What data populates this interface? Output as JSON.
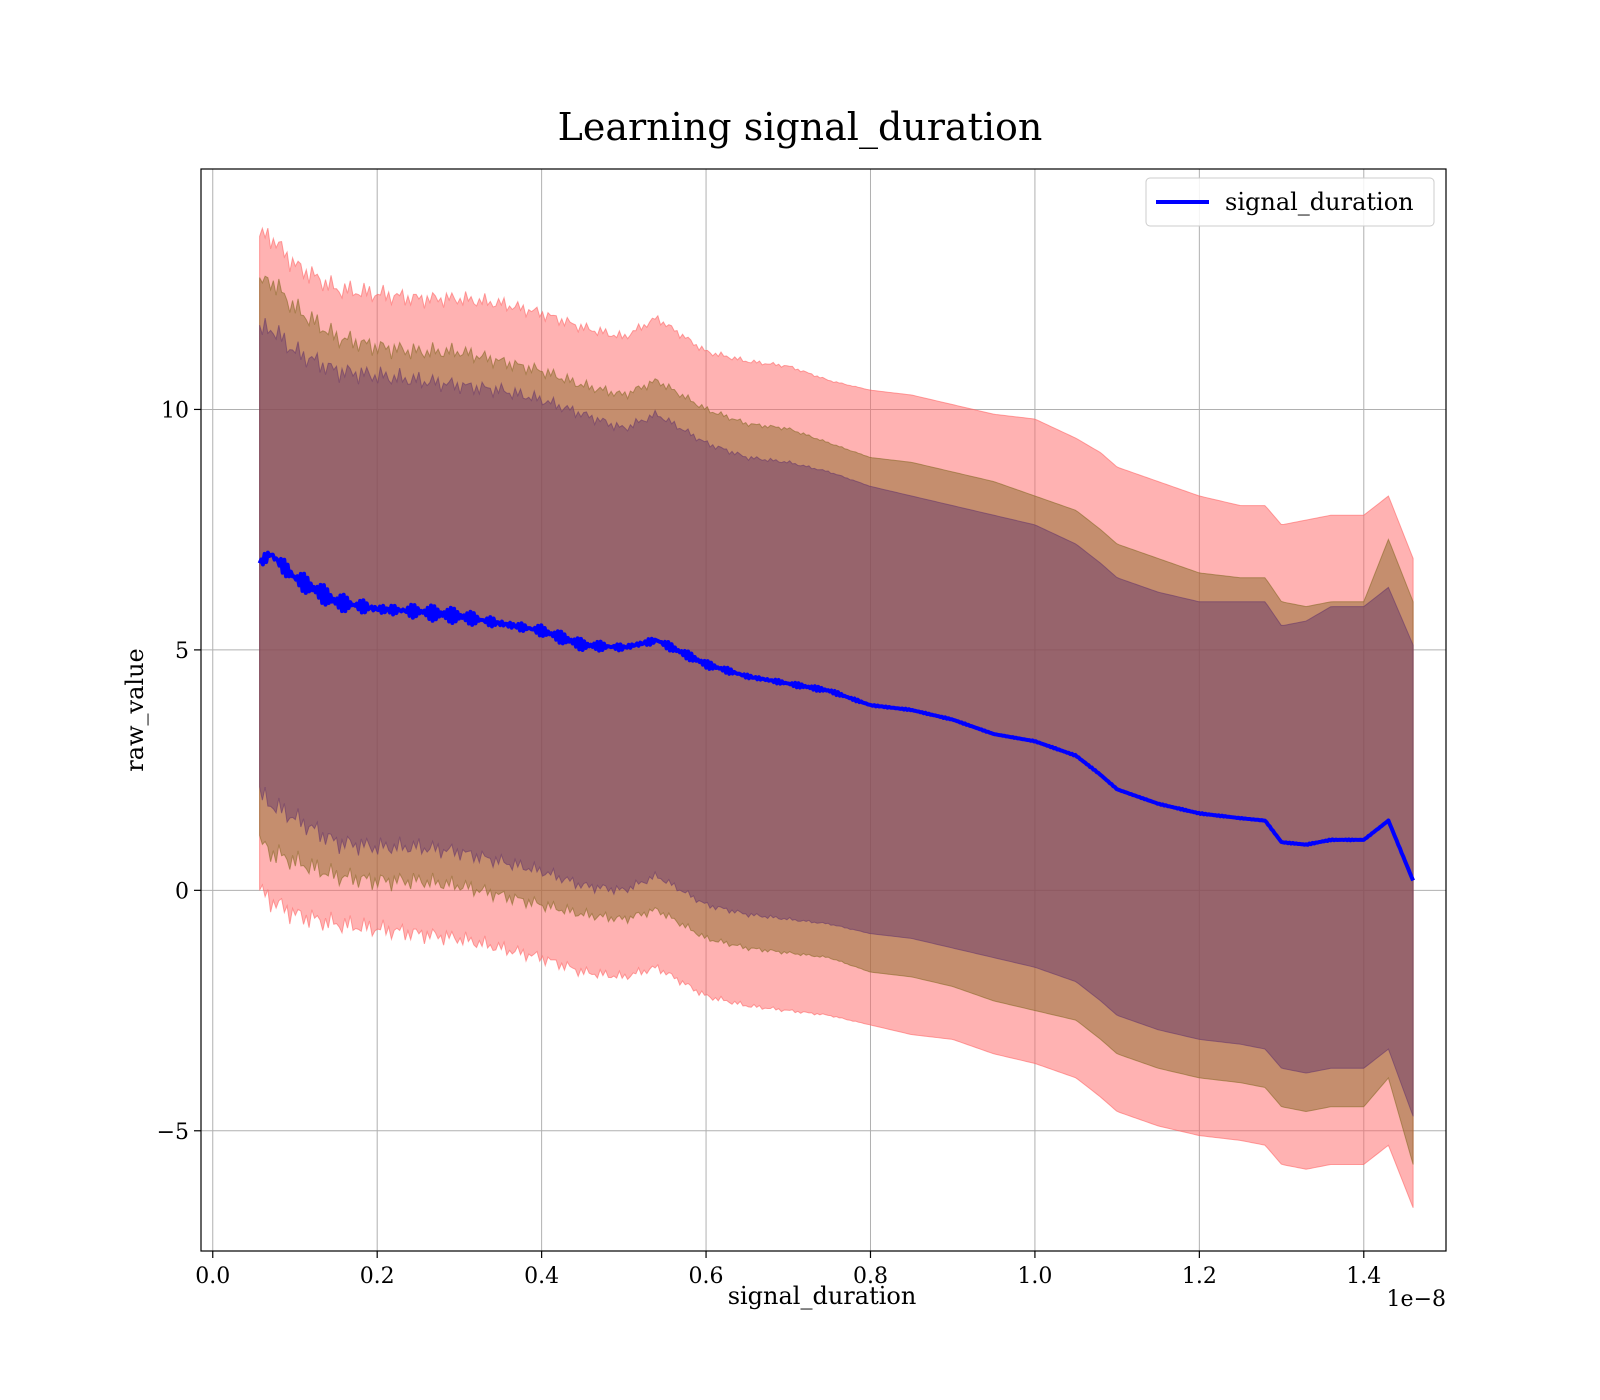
{
  "chart_data": {
    "type": "line",
    "title": "Learning signal_duration",
    "xlabel": "signal_duration",
    "ylabel": "raw_value",
    "x_offset_label": "1e−8",
    "x_scale_exponent": -8,
    "xlim": [
      -0.0143,
      1.5
    ],
    "ylim": [
      -7.5,
      15.0
    ],
    "x_ticks": [
      0.0,
      0.2,
      0.4,
      0.6,
      0.8,
      1.0,
      1.2,
      1.4
    ],
    "x_tick_labels": [
      "0.0",
      "0.2",
      "0.4",
      "0.6",
      "0.8",
      "1.0",
      "1.2",
      "1.4"
    ],
    "y_ticks": [
      -5,
      0,
      5,
      10
    ],
    "y_tick_labels": [
      "−5",
      "0",
      "5",
      "10"
    ],
    "grid": true,
    "legend_placement": "top-right",
    "series": [
      {
        "name": "signal_duration",
        "color": "#0000ff",
        "x": [
          0.057,
          0.07,
          0.1,
          0.15,
          0.2,
          0.25,
          0.3,
          0.35,
          0.4,
          0.45,
          0.5,
          0.54,
          0.6,
          0.65,
          0.7,
          0.75,
          0.8,
          0.85,
          0.9,
          0.95,
          1.0,
          1.05,
          1.08,
          1.1,
          1.15,
          1.2,
          1.25,
          1.28,
          1.3,
          1.33,
          1.36,
          1.4,
          1.43,
          1.46
        ],
        "values": [
          6.8,
          7.0,
          6.5,
          6.0,
          5.85,
          5.8,
          5.7,
          5.55,
          5.4,
          5.1,
          5.05,
          5.2,
          4.7,
          4.45,
          4.3,
          4.15,
          3.85,
          3.75,
          3.55,
          3.25,
          3.1,
          2.8,
          2.4,
          2.1,
          1.8,
          1.6,
          1.5,
          1.45,
          1.0,
          0.95,
          1.05,
          1.05,
          1.45,
          0.2
        ]
      }
    ],
    "bands": [
      {
        "color": "#ff6666",
        "x": [
          0.057,
          0.07,
          0.1,
          0.15,
          0.2,
          0.25,
          0.3,
          0.35,
          0.4,
          0.45,
          0.5,
          0.54,
          0.6,
          0.65,
          0.7,
          0.75,
          0.8,
          0.85,
          0.9,
          0.95,
          1.0,
          1.05,
          1.08,
          1.1,
          1.15,
          1.2,
          1.25,
          1.28,
          1.3,
          1.33,
          1.36,
          1.4,
          1.43,
          1.46
        ],
        "upper": [
          13.6,
          13.6,
          13.0,
          12.5,
          12.4,
          12.3,
          12.3,
          12.2,
          12.0,
          11.7,
          11.5,
          11.9,
          11.2,
          11.0,
          10.9,
          10.6,
          10.4,
          10.3,
          10.1,
          9.9,
          9.8,
          9.4,
          9.1,
          8.8,
          8.5,
          8.2,
          8.0,
          8.0,
          7.6,
          7.7,
          7.8,
          7.8,
          8.2,
          6.9
        ],
        "lower": [
          0.0,
          -0.2,
          -0.5,
          -0.7,
          -0.8,
          -0.9,
          -1.0,
          -1.2,
          -1.4,
          -1.7,
          -1.8,
          -1.6,
          -2.2,
          -2.4,
          -2.5,
          -2.6,
          -2.8,
          -3.0,
          -3.1,
          -3.4,
          -3.6,
          -3.9,
          -4.3,
          -4.6,
          -4.9,
          -5.1,
          -5.2,
          -5.3,
          -5.7,
          -5.8,
          -5.7,
          -5.7,
          -5.3,
          -6.6
        ]
      },
      {
        "color": "#8b6a2a",
        "x": [
          0.057,
          0.07,
          0.1,
          0.15,
          0.2,
          0.25,
          0.3,
          0.35,
          0.4,
          0.45,
          0.5,
          0.54,
          0.6,
          0.65,
          0.7,
          0.75,
          0.8,
          0.85,
          0.9,
          0.95,
          1.0,
          1.05,
          1.08,
          1.1,
          1.15,
          1.2,
          1.25,
          1.28,
          1.3,
          1.33,
          1.36,
          1.4,
          1.43,
          1.46
        ],
        "upper": [
          12.6,
          12.7,
          12.1,
          11.5,
          11.3,
          11.2,
          11.2,
          11.0,
          10.8,
          10.5,
          10.3,
          10.6,
          10.0,
          9.7,
          9.6,
          9.3,
          9.0,
          8.9,
          8.7,
          8.5,
          8.2,
          7.9,
          7.5,
          7.2,
          6.9,
          6.6,
          6.5,
          6.5,
          6.0,
          5.9,
          6.0,
          6.0,
          7.3,
          6.0
        ],
        "lower": [
          1.0,
          0.8,
          0.6,
          0.3,
          0.2,
          0.2,
          0.1,
          -0.1,
          -0.3,
          -0.5,
          -0.6,
          -0.4,
          -1.0,
          -1.2,
          -1.3,
          -1.4,
          -1.7,
          -1.8,
          -2.0,
          -2.3,
          -2.5,
          -2.7,
          -3.1,
          -3.4,
          -3.7,
          -3.9,
          -4.0,
          -4.1,
          -4.5,
          -4.6,
          -4.5,
          -4.5,
          -3.9,
          -5.7
        ]
      },
      {
        "color": "#6a3a6a",
        "x": [
          0.057,
          0.07,
          0.1,
          0.15,
          0.2,
          0.25,
          0.3,
          0.35,
          0.4,
          0.45,
          0.5,
          0.54,
          0.6,
          0.65,
          0.7,
          0.75,
          0.8,
          0.85,
          0.9,
          0.95,
          1.0,
          1.05,
          1.08,
          1.1,
          1.15,
          1.2,
          1.25,
          1.28,
          1.3,
          1.33,
          1.36,
          1.4,
          1.43,
          1.46
        ],
        "upper": [
          11.6,
          11.7,
          11.2,
          10.8,
          10.7,
          10.6,
          10.5,
          10.4,
          10.2,
          9.9,
          9.6,
          9.9,
          9.3,
          9.0,
          8.9,
          8.7,
          8.4,
          8.2,
          8.0,
          7.8,
          7.6,
          7.2,
          6.8,
          6.5,
          6.2,
          6.0,
          6.0,
          6.0,
          5.5,
          5.6,
          5.9,
          5.9,
          6.3,
          5.1
        ],
        "lower": [
          2.0,
          1.8,
          1.5,
          1.0,
          0.9,
          0.9,
          0.8,
          0.6,
          0.4,
          0.1,
          0.0,
          0.3,
          -0.3,
          -0.5,
          -0.6,
          -0.7,
          -0.9,
          -1.0,
          -1.2,
          -1.4,
          -1.6,
          -1.9,
          -2.3,
          -2.6,
          -2.9,
          -3.1,
          -3.2,
          -3.3,
          -3.7,
          -3.8,
          -3.7,
          -3.7,
          -3.3,
          -4.7
        ]
      }
    ]
  }
}
